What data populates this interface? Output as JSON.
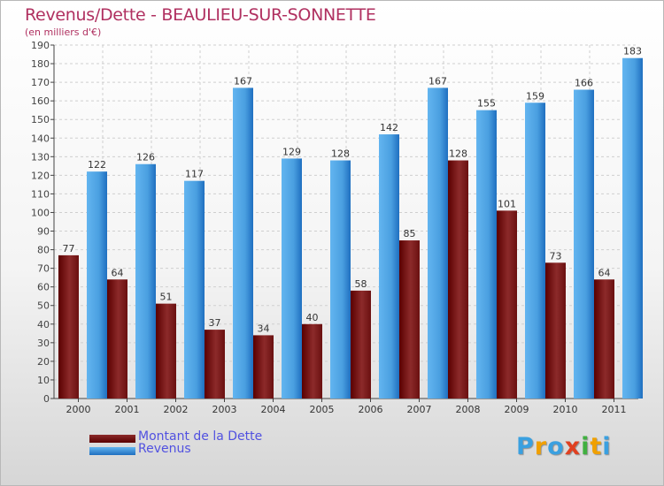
{
  "chart_data": {
    "type": "bar",
    "title": "Revenus/Dette - BEAULIEU-SUR-SONNETTE",
    "subtitle": "(en milliers d'€)",
    "categories": [
      "2000",
      "2001",
      "2002",
      "2003",
      "2004",
      "2005",
      "2006",
      "2007",
      "2008",
      "2009",
      "2010",
      "2011"
    ],
    "series": [
      {
        "name": "Montant de la Dette",
        "values": [
          77,
          64,
          51,
          37,
          34,
          40,
          58,
          85,
          128,
          101,
          73,
          64
        ]
      },
      {
        "name": "Revenus",
        "values": [
          122,
          126,
          117,
          167,
          129,
          128,
          142,
          167,
          155,
          159,
          166,
          183
        ]
      }
    ],
    "ylim": [
      0,
      190
    ],
    "ytick_step": 10,
    "grid": true,
    "legend_position": "bottom-left"
  },
  "colors": {
    "dette_dark": "#5a0000",
    "dette_light": "#8c2a2a",
    "revenus_dark": "#1f6fc0",
    "revenus_light": "#63b5f0",
    "title": "#b03060",
    "legend_text": "#5151e0"
  },
  "legend": {
    "dette_label": "Montant de la Dette",
    "revenus_label": "Revenus"
  },
  "logo": {
    "letters": [
      "P",
      "r",
      "o",
      "x",
      "i",
      "t",
      "i"
    ],
    "colors": [
      "#3aa0e0",
      "#f0a000",
      "#3aa0e0",
      "#e04020",
      "#40b040",
      "#f0a000",
      "#3aa0e0"
    ]
  }
}
